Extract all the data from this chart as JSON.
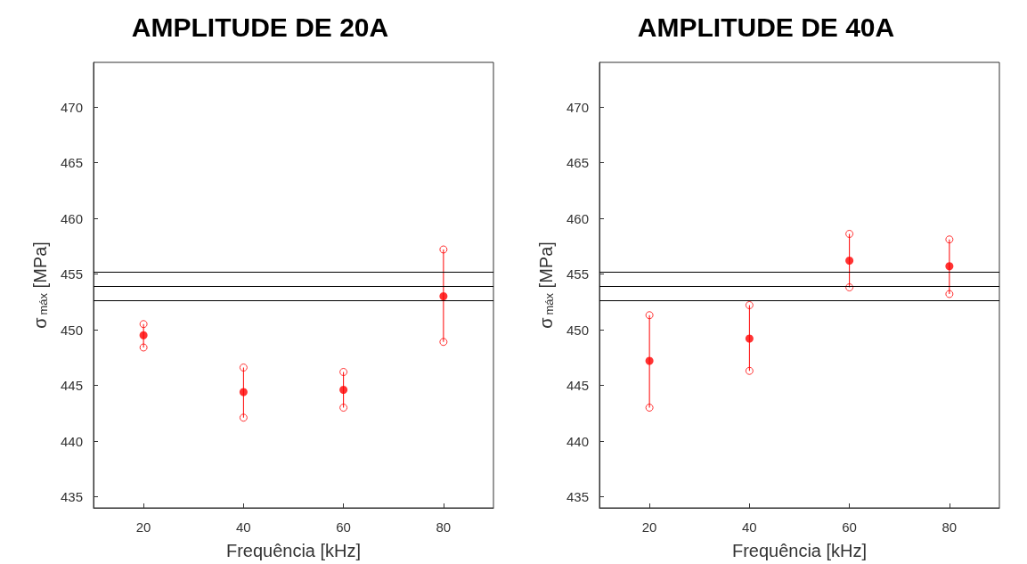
{
  "chart_data": [
    {
      "type": "scatter",
      "title": "AMPLITUDE DE 20A",
      "xlabel": "Frequência [kHz]",
      "ylabel": "σ$_{máx}$ [MPa]",
      "x": [
        20,
        40,
        60,
        80
      ],
      "series": [
        {
          "color": "#ff0000",
          "values": [
            449.5,
            444.4,
            444.6,
            453.0
          ],
          "errors": [
            [
              448.4,
              450.5
            ],
            [
              442.1,
              446.6
            ],
            [
              443.0,
              446.2
            ],
            [
              448.9,
              457.2
            ]
          ]
        },
        {
          "color": "#ff0000",
          "values": [
            450.5,
            446.6,
            446.2,
            457.2
          ]
        },
        {
          "color": "#ff0000",
          "values": [
            448.4,
            442.1,
            443.0,
            448.9
          ]
        }
      ],
      "xlim": [
        10,
        90
      ],
      "xticks": [
        20,
        40,
        60,
        80
      ],
      "ylim": [
        434,
        474
      ],
      "yticks": [
        435,
        440,
        445,
        450,
        455,
        460,
        465,
        470
      ],
      "ref_lines": [
        {
          "axis": "y",
          "value": 455.2,
          "color": "#000000"
        },
        {
          "axis": "y",
          "value": 453.9,
          "color": "#000000"
        },
        {
          "axis": "y",
          "value": 452.6,
          "color": "#000000"
        }
      ],
      "marker": "circle",
      "grid": false
    },
    {
      "type": "scatter",
      "title": "AMPLITUDE DE 40A",
      "xlabel": "Frequência [kHz]",
      "ylabel": "σ$_{máx}$ [MPa]",
      "x": [
        20,
        40,
        60,
        80
      ],
      "series": [
        {
          "color": "#ff0000",
          "values": [
            447.2,
            449.2,
            456.2,
            455.7
          ],
          "errors": [
            [
              443.0,
              451.3
            ],
            [
              446.3,
              452.2
            ],
            [
              453.8,
              458.6
            ],
            [
              453.2,
              458.1
            ]
          ]
        },
        {
          "color": "#ff0000",
          "values": [
            451.3,
            452.2,
            458.6,
            458.1
          ]
        },
        {
          "color": "#ff0000",
          "values": [
            443.0,
            446.3,
            453.8,
            453.2
          ]
        }
      ],
      "xlim": [
        10,
        90
      ],
      "xticks": [
        20,
        40,
        60,
        80
      ],
      "ylim": [
        434,
        474
      ],
      "yticks": [
        435,
        440,
        445,
        450,
        455,
        460,
        465,
        470
      ],
      "ref_lines": [
        {
          "axis": "y",
          "value": 455.2,
          "color": "#000000"
        },
        {
          "axis": "y",
          "value": 453.9,
          "color": "#000000"
        },
        {
          "axis": "y",
          "value": 452.6,
          "color": "#000000"
        }
      ],
      "marker": "circle",
      "grid": false
    }
  ]
}
